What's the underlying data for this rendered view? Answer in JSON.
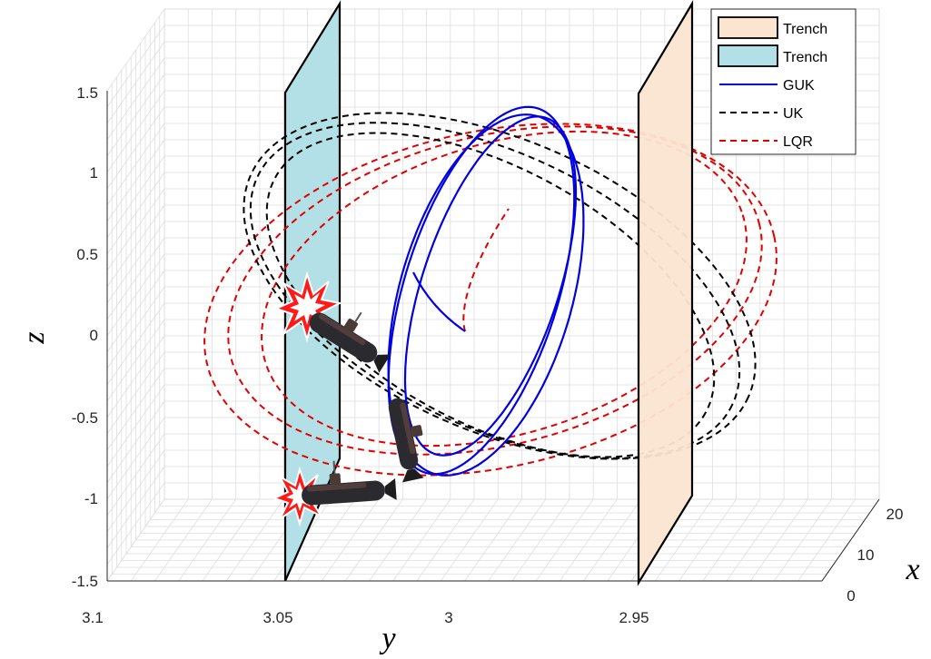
{
  "chart_data": {
    "type": "line",
    "dimensions": "3d",
    "xlabel": "x",
    "ylabel": "y",
    "zlabel": "z",
    "x_ticks": [
      "0",
      "10",
      "20"
    ],
    "y_ticks": [
      "3.1",
      "3.05",
      "3",
      "2.95"
    ],
    "z_ticks": [
      "1.5",
      "1",
      "0.5",
      "0",
      "-0.5",
      "-1",
      "-1.5"
    ],
    "xlim": [
      0,
      20
    ],
    "ylim": [
      2.95,
      3.1
    ],
    "zlim": [
      -1.5,
      1.5
    ],
    "grid": true,
    "legend_position": "top-right",
    "legend": [
      {
        "label": "Trench",
        "kind": "patch",
        "color": "#fbe5d1"
      },
      {
        "label": "Trench",
        "kind": "patch",
        "color": "#b2e0e6"
      },
      {
        "label": "GUK",
        "kind": "solid",
        "color": "#0000e0"
      },
      {
        "label": "UK",
        "kind": "dashed",
        "color": "#000000"
      },
      {
        "label": "LQR",
        "kind": "dashed",
        "color": "#e00000"
      }
    ],
    "series": [
      {
        "name": "GUK",
        "color": "#0000e0",
        "y_center": 3.0,
        "y_amplitude": 0.02,
        "z_start": 0.0,
        "z_range": [
          -0.85,
          1.35
        ]
      },
      {
        "name": "UK",
        "color": "#000000",
        "y_center": 3.0,
        "y_amplitude": 0.06,
        "z_range": [
          -0.85,
          1.4
        ]
      },
      {
        "name": "LQR",
        "color": "#e00000",
        "y_center": 3.0,
        "y_amplitude": 0.08,
        "z_range": [
          -1.0,
          1.5
        ]
      }
    ],
    "trench_walls": [
      {
        "color": "#b2e0e6",
        "y": 3.04
      },
      {
        "color": "#fbe5d1",
        "y": 2.95
      }
    ],
    "collision_markers": 2
  }
}
